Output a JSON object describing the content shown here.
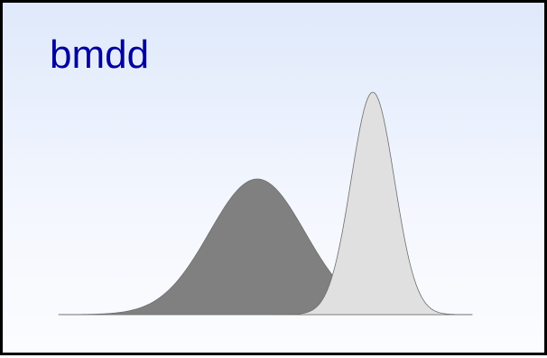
{
  "title": "bmdd",
  "colors": {
    "frame_border": "#000000",
    "title_text": "#0000a0",
    "dark_curve_fill": "#808080",
    "light_curve_fill": "#e0e0e0",
    "curve_outline": "#6e6e6e",
    "baseline": "#8a8a8a"
  },
  "curves": [
    {
      "name": "",
      "shape": "broad bell curve",
      "relative_peak": 1.0
    },
    {
      "name": "",
      "shape": "narrow tall bell curve",
      "relative_peak": 1.64
    }
  ]
}
